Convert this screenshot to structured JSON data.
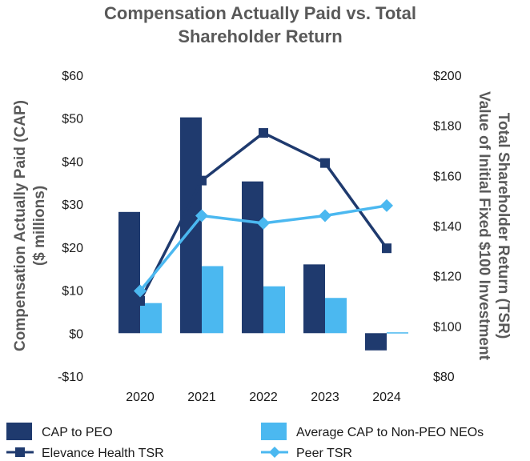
{
  "chart_data": {
    "type": "bar+line",
    "title_lines": [
      "Compensation Actually Paid vs. Total",
      "Shareholder Return"
    ],
    "categories": [
      "2020",
      "2021",
      "2022",
      "2023",
      "2024"
    ],
    "y_left": {
      "label_lines": [
        "Compensation Actually Paid (CAP)",
        "($ millions)"
      ],
      "lim": [
        -10,
        60
      ],
      "ticks": [
        60,
        50,
        40,
        30,
        20,
        10,
        0,
        -10
      ],
      "tick_labels": [
        "$60",
        "$50",
        "$40",
        "$30",
        "$20",
        "$10",
        "$0",
        "-$10"
      ]
    },
    "y_right": {
      "label_lines": [
        "Total Shareholder Return (TSR)",
        "Value of Initial Fixed $100 Investment"
      ],
      "lim": [
        80,
        200
      ],
      "ticks": [
        200,
        180,
        160,
        140,
        120,
        100,
        80
      ],
      "tick_labels": [
        "$200",
        "$180",
        "$160",
        "$140",
        "$120",
        "$100",
        "$80"
      ]
    },
    "bar_series": [
      {
        "name": "CAP to PEO",
        "color": "#1f3a6e",
        "values": [
          28.2,
          50.2,
          35.3,
          16.0,
          -4.0
        ]
      },
      {
        "name": "Average CAP to Non-PEO NEOs",
        "color": "#4bb8f0",
        "values": [
          7.0,
          15.6,
          10.9,
          8.2,
          0.2
        ]
      }
    ],
    "line_series": [
      {
        "name": "Elevance Health TSR",
        "color": "#1f3a6e",
        "marker": "square",
        "values": [
          110,
          158,
          177,
          165,
          131
        ]
      },
      {
        "name": "Peer TSR",
        "color": "#4bb8f0",
        "marker": "diamond",
        "values": [
          114,
          144,
          141,
          144,
          148
        ]
      }
    ],
    "legend": {
      "placement": "bottom",
      "items": [
        "CAP to PEO",
        "Average CAP to Non-PEO NEOs",
        "Elevance Health TSR",
        "Peer TSR"
      ]
    }
  }
}
